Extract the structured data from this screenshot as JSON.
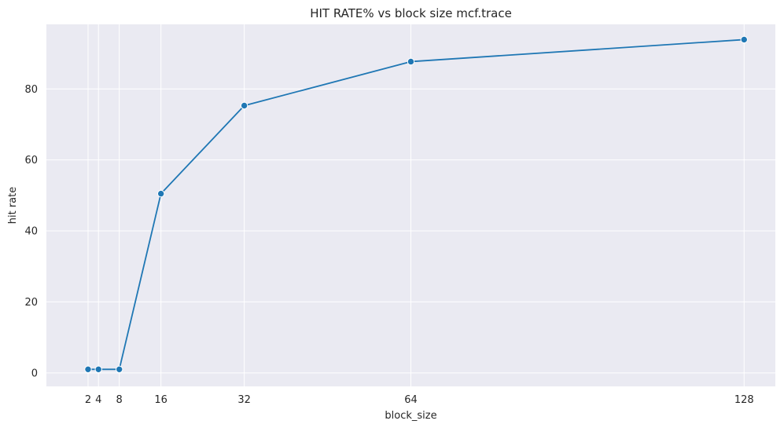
{
  "chart_data": {
    "type": "line",
    "title": "HIT RATE% vs block size mcf.trace",
    "xlabel": "block_size",
    "ylabel": "hit rate",
    "x": [
      2,
      4,
      8,
      16,
      32,
      64,
      128
    ],
    "xticks": [
      2,
      4,
      8,
      16,
      32,
      64,
      128
    ],
    "xtick_labels": [
      "2",
      "4",
      "8",
      "16",
      "32",
      "64",
      "128"
    ],
    "yticks": [
      0,
      20,
      40,
      60,
      80
    ],
    "ytick_labels": [
      "0",
      "20",
      "40",
      "60",
      "80"
    ],
    "xlim": [
      -6,
      134
    ],
    "ylim": [
      -3.8,
      98.2
    ],
    "grid": true,
    "markers": true,
    "series": [
      {
        "name": "",
        "values": [
          1.0,
          1.0,
          1.0,
          50.5,
          75.3,
          87.7,
          93.9
        ]
      }
    ],
    "colors": {
      "plot_bg": "#eaeaf2",
      "grid": "#ffffff",
      "line": "#1f77b4",
      "marker_edge": "#ffffff"
    }
  }
}
